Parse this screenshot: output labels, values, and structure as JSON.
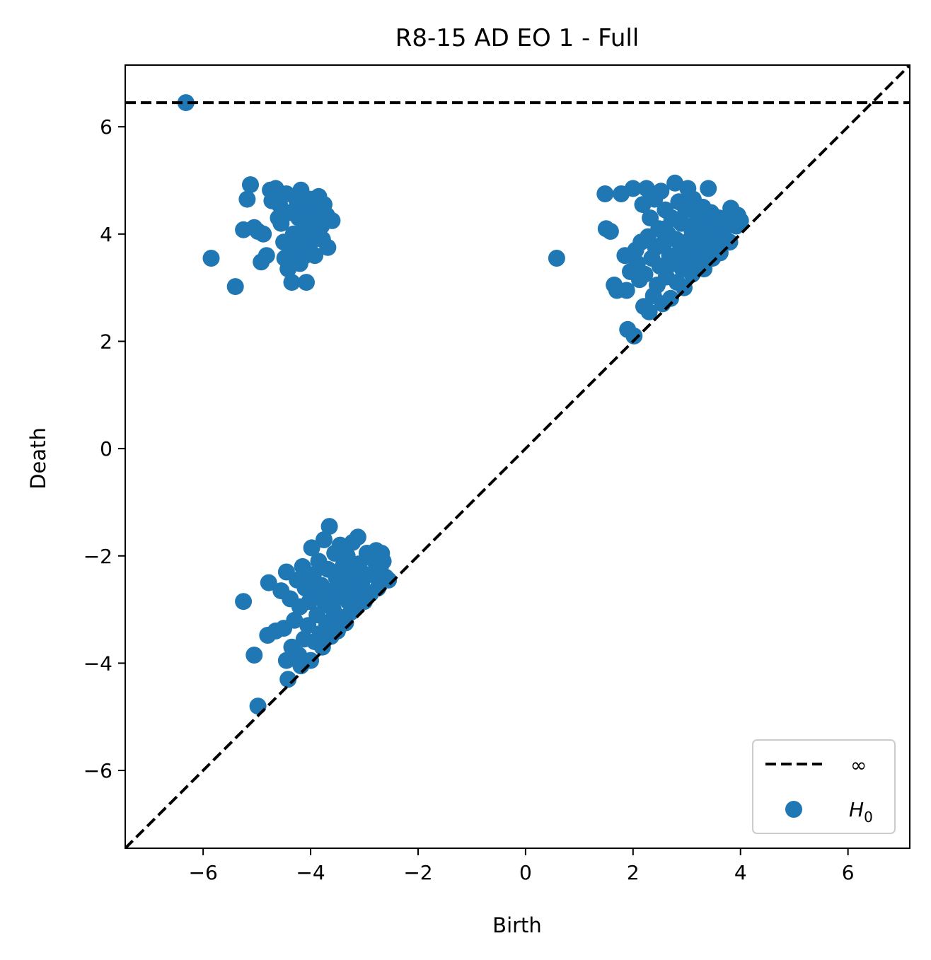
{
  "chart_data": {
    "type": "scatter",
    "title": "R8-15 AD EO 1 - Full",
    "xlabel": "Birth",
    "ylabel": "Death",
    "xlim": [
      -7.45,
      7.15
    ],
    "ylim": [
      -7.45,
      7.15
    ],
    "xticks": [
      -6,
      -4,
      -2,
      0,
      2,
      4,
      6
    ],
    "yticks": [
      -6,
      -4,
      -2,
      0,
      2,
      4,
      6
    ],
    "tick_labels": [
      "−6",
      "−4",
      "−2",
      "0",
      "2",
      "4",
      "6"
    ],
    "infinity_level": 6.45,
    "grid": false,
    "legend_position": "lower-right",
    "legend": [
      "∞",
      "H",
      "0"
    ],
    "colors": {
      "points": "#1f77b4",
      "lines": "#000000"
    },
    "series": [
      {
        "name": "H0",
        "points": [
          [
            -6.32,
            6.45
          ],
          [
            -5.85,
            3.55
          ],
          [
            -5.4,
            3.02
          ],
          [
            -5.25,
            4.08
          ],
          [
            -5.18,
            4.65
          ],
          [
            -5.12,
            4.92
          ],
          [
            -5.05,
            4.12
          ],
          [
            -4.98,
            4.05
          ],
          [
            -4.92,
            3.48
          ],
          [
            -4.88,
            4.0
          ],
          [
            -4.82,
            3.6
          ],
          [
            -4.75,
            4.82
          ],
          [
            -4.72,
            4.62
          ],
          [
            -4.65,
            4.85
          ],
          [
            -4.58,
            4.55
          ],
          [
            -4.55,
            4.2
          ],
          [
            -4.5,
            3.85
          ],
          [
            -4.48,
            3.55
          ],
          [
            -4.45,
            4.75
          ],
          [
            -4.42,
            3.35
          ],
          [
            -4.38,
            4.4
          ],
          [
            -4.35,
            3.1
          ],
          [
            -4.32,
            4.0
          ],
          [
            -4.28,
            3.7
          ],
          [
            -4.25,
            4.6
          ],
          [
            -4.22,
            4.3
          ],
          [
            -4.2,
            3.45
          ],
          [
            -4.18,
            4.82
          ],
          [
            -4.15,
            3.95
          ],
          [
            -4.12,
            4.15
          ],
          [
            -4.1,
            3.6
          ],
          [
            -4.08,
            3.1
          ],
          [
            -4.05,
            4.5
          ],
          [
            -4.02,
            3.8
          ],
          [
            -4.0,
            4.65
          ],
          [
            -3.98,
            4.25
          ],
          [
            -3.95,
            4.0
          ],
          [
            -3.92,
            3.6
          ],
          [
            -3.9,
            4.4
          ],
          [
            -3.85,
            4.7
          ],
          [
            -3.8,
            4.15
          ],
          [
            -3.78,
            3.9
          ],
          [
            -3.75,
            4.55
          ],
          [
            -3.7,
            4.35
          ],
          [
            -3.68,
            3.75
          ],
          [
            -3.6,
            4.25
          ],
          [
            -3.88,
            4.05
          ],
          [
            -4.3,
            3.85
          ],
          [
            -4.6,
            4.3
          ],
          [
            0.58,
            3.55
          ],
          [
            1.48,
            4.75
          ],
          [
            1.5,
            4.1
          ],
          [
            1.58,
            4.05
          ],
          [
            1.65,
            3.05
          ],
          [
            1.7,
            2.95
          ],
          [
            1.78,
            4.75
          ],
          [
            1.85,
            3.6
          ],
          [
            1.88,
            2.95
          ],
          [
            1.9,
            2.22
          ],
          [
            1.95,
            3.3
          ],
          [
            2.0,
            4.85
          ],
          [
            2.02,
            2.1
          ],
          [
            2.05,
            3.7
          ],
          [
            2.08,
            3.45
          ],
          [
            2.12,
            3.15
          ],
          [
            2.15,
            3.85
          ],
          [
            2.18,
            4.55
          ],
          [
            2.2,
            2.65
          ],
          [
            2.22,
            3.25
          ],
          [
            2.25,
            4.85
          ],
          [
            2.28,
            3.95
          ],
          [
            2.3,
            2.55
          ],
          [
            2.32,
            4.3
          ],
          [
            2.35,
            3.55
          ],
          [
            2.38,
            2.85
          ],
          [
            2.4,
            4.65
          ],
          [
            2.42,
            3.75
          ],
          [
            2.45,
            3.05
          ],
          [
            2.48,
            4.1
          ],
          [
            2.5,
            3.4
          ],
          [
            2.52,
            4.8
          ],
          [
            2.55,
            2.7
          ],
          [
            2.58,
            3.85
          ],
          [
            2.6,
            4.45
          ],
          [
            2.62,
            3.2
          ],
          [
            2.65,
            4.0
          ],
          [
            2.68,
            3.6
          ],
          [
            2.7,
            2.8
          ],
          [
            2.72,
            4.3
          ],
          [
            2.75,
            3.45
          ],
          [
            2.78,
            4.95
          ],
          [
            2.8,
            3.9
          ],
          [
            2.82,
            3.1
          ],
          [
            2.85,
            4.6
          ],
          [
            2.88,
            3.7
          ],
          [
            2.9,
            4.2
          ],
          [
            2.92,
            3.35
          ],
          [
            2.95,
            3.0
          ],
          [
            2.98,
            4.45
          ],
          [
            3.0,
            3.85
          ],
          [
            3.02,
            4.85
          ],
          [
            3.05,
            3.55
          ],
          [
            3.08,
            4.15
          ],
          [
            3.1,
            3.25
          ],
          [
            3.12,
            4.65
          ],
          [
            3.15,
            3.95
          ],
          [
            3.18,
            3.6
          ],
          [
            3.2,
            4.35
          ],
          [
            3.22,
            3.4
          ],
          [
            3.25,
            4.05
          ],
          [
            3.28,
            3.75
          ],
          [
            3.3,
            4.5
          ],
          [
            3.32,
            3.35
          ],
          [
            3.35,
            4.2
          ],
          [
            3.38,
            3.9
          ],
          [
            3.4,
            4.85
          ],
          [
            3.42,
            3.6
          ],
          [
            3.45,
            4.4
          ],
          [
            3.48,
            3.55
          ],
          [
            3.5,
            4.1
          ],
          [
            3.55,
            3.8
          ],
          [
            3.6,
            4.3
          ],
          [
            3.62,
            3.65
          ],
          [
            3.68,
            4.05
          ],
          [
            3.72,
            3.9
          ],
          [
            3.75,
            4.2
          ],
          [
            3.8,
            3.85
          ],
          [
            3.82,
            4.48
          ],
          [
            3.88,
            4.3
          ],
          [
            3.92,
            4.15
          ],
          [
            3.95,
            4.35
          ],
          [
            4.0,
            4.25
          ],
          [
            2.6,
            4.1
          ],
          [
            2.9,
            3.6
          ],
          [
            3.1,
            4.05
          ],
          [
            -5.25,
            -2.85
          ],
          [
            -5.05,
            -3.85
          ],
          [
            -4.98,
            -4.8
          ],
          [
            -4.8,
            -3.48
          ],
          [
            -4.78,
            -2.5
          ],
          [
            -4.65,
            -3.4
          ],
          [
            -4.55,
            -2.65
          ],
          [
            -4.5,
            -3.35
          ],
          [
            -4.45,
            -3.95
          ],
          [
            -4.45,
            -2.3
          ],
          [
            -4.42,
            -4.3
          ],
          [
            -4.38,
            -2.8
          ],
          [
            -4.35,
            -3.7
          ],
          [
            -4.3,
            -3.2
          ],
          [
            -4.25,
            -2.45
          ],
          [
            -4.22,
            -3.85
          ],
          [
            -4.2,
            -2.95
          ],
          [
            -4.18,
            -4.05
          ],
          [
            -4.15,
            -2.2
          ],
          [
            -4.12,
            -3.55
          ],
          [
            -4.1,
            -2.6
          ],
          [
            -4.05,
            -3.3
          ],
          [
            -4.02,
            -2.85
          ],
          [
            -4.0,
            -3.95
          ],
          [
            -3.98,
            -1.85
          ],
          [
            -3.95,
            -2.35
          ],
          [
            -3.92,
            -3.6
          ],
          [
            -3.9,
            -2.7
          ],
          [
            -3.88,
            -3.1
          ],
          [
            -3.85,
            -2.1
          ],
          [
            -3.82,
            -3.45
          ],
          [
            -3.8,
            -2.55
          ],
          [
            -3.78,
            -3.7
          ],
          [
            -3.75,
            -1.7
          ],
          [
            -3.72,
            -2.9
          ],
          [
            -3.7,
            -3.25
          ],
          [
            -3.68,
            -2.25
          ],
          [
            -3.65,
            -1.45
          ],
          [
            -3.62,
            -3.5
          ],
          [
            -3.6,
            -2.65
          ],
          [
            -3.58,
            -3.0
          ],
          [
            -3.55,
            -1.95
          ],
          [
            -3.52,
            -2.4
          ],
          [
            -3.5,
            -3.4
          ],
          [
            -3.48,
            -2.75
          ],
          [
            -3.45,
            -1.8
          ],
          [
            -3.42,
            -3.15
          ],
          [
            -3.4,
            -2.2
          ],
          [
            -3.38,
            -2.55
          ],
          [
            -3.35,
            -3.25
          ],
          [
            -3.32,
            -2.0
          ],
          [
            -3.3,
            -2.85
          ],
          [
            -3.28,
            -2.45
          ],
          [
            -3.25,
            -3.05
          ],
          [
            -3.22,
            -1.75
          ],
          [
            -3.2,
            -2.3
          ],
          [
            -3.18,
            -2.7
          ],
          [
            -3.15,
            -2.95
          ],
          [
            -3.12,
            -1.65
          ],
          [
            -3.1,
            -2.15
          ],
          [
            -3.05,
            -2.5
          ],
          [
            -3.0,
            -2.85
          ],
          [
            -2.95,
            -1.95
          ],
          [
            -2.92,
            -2.35
          ],
          [
            -2.88,
            -2.7
          ],
          [
            -2.85,
            -2.05
          ],
          [
            -2.8,
            -2.3
          ],
          [
            -2.78,
            -1.9
          ],
          [
            -2.75,
            -2.6
          ],
          [
            -2.7,
            -2.2
          ],
          [
            -2.68,
            -1.95
          ],
          [
            -2.65,
            -2.1
          ],
          [
            -2.6,
            -2.4
          ],
          [
            -2.55,
            -2.45
          ],
          [
            -3.6,
            -2.9
          ],
          [
            -3.4,
            -2.6
          ],
          [
            -3.8,
            -2.8
          ],
          [
            -4.0,
            -2.45
          ]
        ]
      }
    ]
  }
}
